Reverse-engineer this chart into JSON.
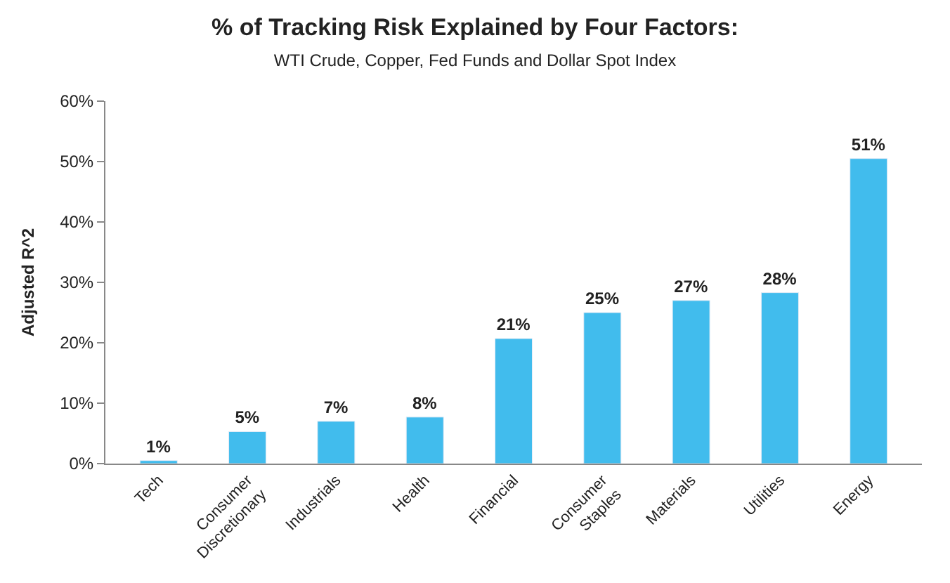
{
  "chart_data": {
    "type": "bar",
    "title": "% of Tracking Risk Explained by Four Factors:",
    "subtitle": "WTI Crude, Copper, Fed Funds and Dollar Spot Index",
    "ylabel": "Adjusted R^2",
    "categories": [
      "Tech",
      "Consumer Discretionary",
      "Industrials",
      "Health",
      "Financial",
      "Consumer Staples",
      "Materials",
      "Utilities",
      "Energy"
    ],
    "values": [
      0.5,
      5.3,
      7.0,
      7.7,
      20.7,
      25.0,
      27.0,
      28.3,
      50.5
    ],
    "value_labels": [
      "1%",
      "5%",
      "7%",
      "8%",
      "21%",
      "25%",
      "27%",
      "28%",
      "51%"
    ],
    "color": "#41bced",
    "ylim": [
      0,
      60
    ],
    "yticks": [
      {
        "value": 0,
        "label": "0%"
      },
      {
        "value": 10,
        "label": "10%"
      },
      {
        "value": 20,
        "label": "20%"
      },
      {
        "value": 30,
        "label": "30%"
      },
      {
        "value": 40,
        "label": "40%"
      },
      {
        "value": 50,
        "label": "50%"
      },
      {
        "value": 60,
        "label": "60%"
      }
    ],
    "legend": false
  }
}
